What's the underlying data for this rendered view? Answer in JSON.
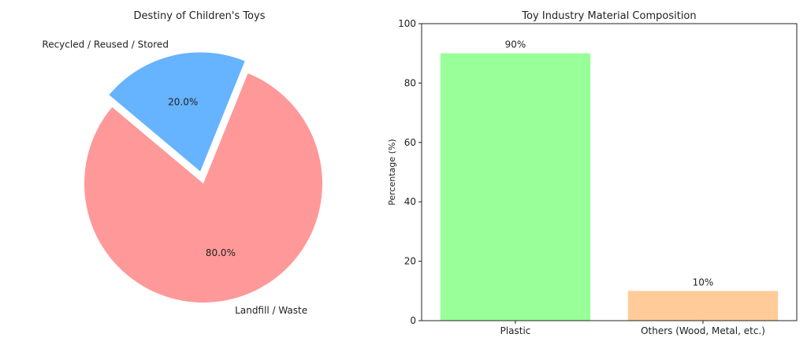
{
  "chart_data": [
    {
      "type": "pie",
      "title": "Destiny of Children's Toys",
      "slices": [
        {
          "label": "Landfill / Waste",
          "value": 80.0,
          "pct_label": "80.0%",
          "color": "#ff9999",
          "explode": false
        },
        {
          "label": "Recycled / Reused / Stored",
          "value": 20.0,
          "pct_label": "20.0%",
          "color": "#66b3ff",
          "explode": true
        }
      ],
      "start_angle_deg": 140
    },
    {
      "type": "bar",
      "title": "Toy Industry Material Composition",
      "categories": [
        "Plastic",
        "Others (Wood, Metal, etc.)"
      ],
      "values": [
        90,
        10
      ],
      "value_labels": [
        "90%",
        "10%"
      ],
      "colors": [
        "#99ff99",
        "#ffcc99"
      ],
      "xlabel": "",
      "ylabel": "Percentage (%)",
      "ylim": [
        0,
        100
      ],
      "yticks": [
        0,
        20,
        40,
        60,
        80,
        100
      ],
      "grid": false
    }
  ]
}
